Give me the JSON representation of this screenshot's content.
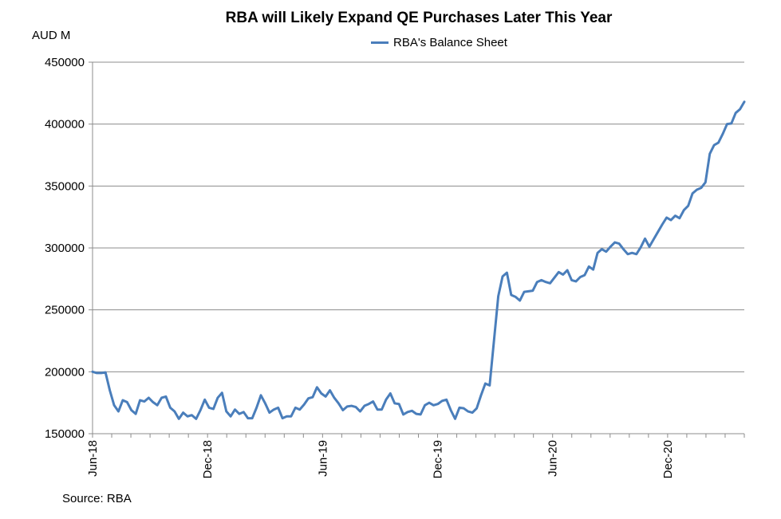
{
  "chart_data": {
    "type": "line",
    "title": "RBA will Likely Expand QE Purchases Later This Year",
    "ylabel": "AUD M",
    "xlabel": "",
    "source": "Source: RBA",
    "ylim": [
      150000,
      450000
    ],
    "yticks": [
      150000,
      200000,
      250000,
      300000,
      350000,
      400000,
      450000
    ],
    "xlim": [
      0,
      34
    ],
    "xticks": [
      {
        "label": "Jun-18",
        "x": 0
      },
      {
        "label": "Dec-18",
        "x": 6
      },
      {
        "label": "Jun-19",
        "x": 12
      },
      {
        "label": "Dec-19",
        "x": 18
      },
      {
        "label": "Jun-20",
        "x": 24
      },
      {
        "label": "Dec-20",
        "x": 30
      }
    ],
    "legend_position": "top-center",
    "grid": true,
    "series": [
      {
        "name": "RBA's Balance Sheet",
        "color": "#4a7ebb",
        "values": [
          200000,
          199000,
          199000,
          199500,
          185000,
          173000,
          168000,
          177000,
          175500,
          169000,
          166000,
          177000,
          176000,
          179000,
          175500,
          173000,
          179000,
          180000,
          171000,
          168000,
          162000,
          167000,
          164000,
          165000,
          162000,
          169000,
          177500,
          171000,
          170000,
          179000,
          183000,
          168000,
          164000,
          169500,
          166000,
          167500,
          162500,
          162500,
          171000,
          181000,
          174500,
          167000,
          169500,
          171000,
          162500,
          164000,
          164000,
          171000,
          169500,
          173500,
          178500,
          179500,
          187500,
          182500,
          180000,
          185000,
          179000,
          174500,
          169000,
          172000,
          172500,
          171500,
          168000,
          172500,
          174000,
          176000,
          169500,
          169500,
          177500,
          182500,
          174500,
          174000,
          165500,
          167500,
          168500,
          166000,
          165500,
          173000,
          175000,
          173000,
          174000,
          176500,
          177500,
          169000,
          162000,
          171000,
          170500,
          168000,
          167000,
          170500,
          181000,
          190500,
          189000,
          225000,
          261000,
          277000,
          280000,
          262000,
          260500,
          257500,
          264500,
          265000,
          265500,
          272500,
          274000,
          272500,
          271500,
          276000,
          280500,
          278500,
          282000,
          274000,
          273000,
          276500,
          278000,
          285000,
          282500,
          296000,
          299000,
          297000,
          301000,
          304500,
          303500,
          299000,
          295000,
          296000,
          295000,
          300500,
          307500,
          301000,
          307000,
          313000,
          319000,
          324500,
          322500,
          326000,
          324000,
          330500,
          334000,
          344000,
          347000,
          348500,
          353000,
          376000,
          383000,
          385000,
          392000,
          400000,
          400500,
          409000,
          412000,
          418000
        ]
      }
    ]
  }
}
